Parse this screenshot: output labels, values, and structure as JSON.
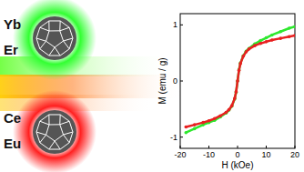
{
  "chart_data": {
    "type": "line",
    "x_label": "H (kOe)",
    "y_label": "M (emu / g)",
    "x": [
      -18,
      -15,
      -12,
      -10,
      -8,
      -6,
      -4,
      -3,
      -2,
      -1,
      -0.5,
      0,
      0.5,
      1,
      2,
      3,
      4,
      6,
      8,
      10,
      12,
      15,
      18,
      20
    ],
    "series": [
      {
        "color": "#2ee82e",
        "marker": "circle",
        "values": [
          -0.92,
          -0.85,
          -0.78,
          -0.74,
          -0.7,
          -0.64,
          -0.57,
          -0.52,
          -0.45,
          -0.32,
          -0.2,
          0,
          0.2,
          0.32,
          0.45,
          0.53,
          0.58,
          0.66,
          0.72,
          0.77,
          0.82,
          0.88,
          0.94,
          0.97
        ]
      },
      {
        "color": "#e82020",
        "marker": "circle",
        "values": [
          -0.82,
          -0.78,
          -0.74,
          -0.71,
          -0.67,
          -0.62,
          -0.56,
          -0.51,
          -0.44,
          -0.31,
          -0.19,
          0,
          0.19,
          0.31,
          0.44,
          0.52,
          0.57,
          0.63,
          0.67,
          0.7,
          0.73,
          0.76,
          0.79,
          0.81
        ]
      }
    ],
    "xlim": [
      -20,
      20
    ],
    "ylim": [
      -1.2,
      1.2
    ],
    "xticks": [
      -20,
      -10,
      0,
      10,
      20
    ],
    "yticks": [
      -1,
      0,
      1
    ],
    "grid": false
  },
  "icons": [
    {
      "labels": [
        "Yb",
        "Er"
      ],
      "color": "#33ff33"
    },
    {
      "labels": [
        "Ce",
        "Eu"
      ],
      "color": "#ff2020"
    }
  ]
}
